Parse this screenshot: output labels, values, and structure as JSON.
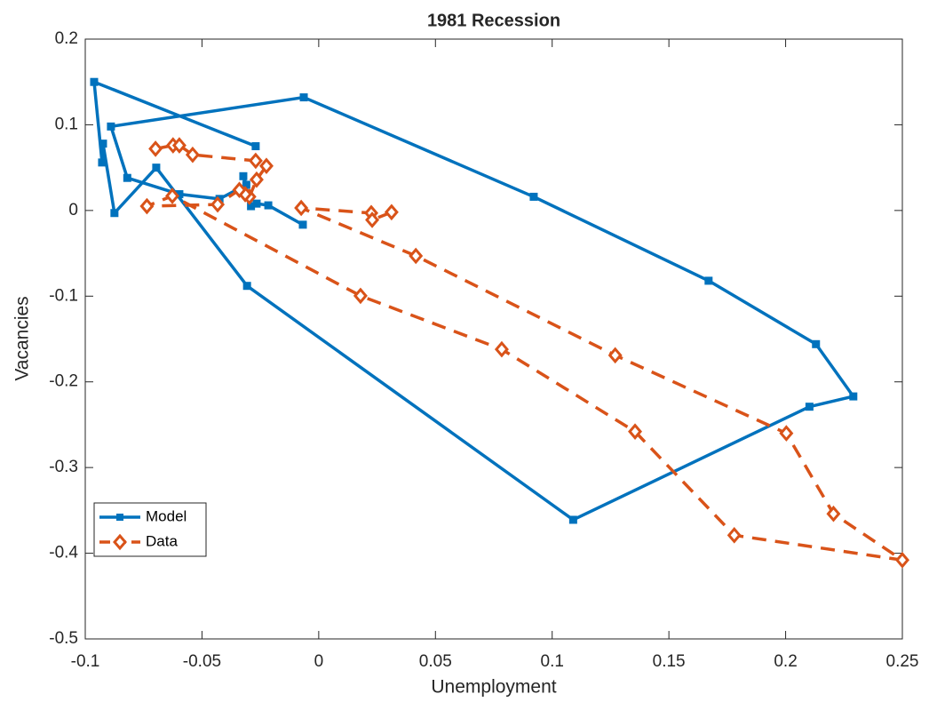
{
  "chart_data": {
    "type": "line",
    "title": "1981 Recession",
    "x_label": "Unemployment",
    "y_label": "Vacancies",
    "xlim": [
      -0.1,
      0.25
    ],
    "ylim": [
      -0.5,
      0.2
    ],
    "xticks": [
      -0.1,
      -0.05,
      0,
      0.05,
      0.1,
      0.15,
      0.2,
      0.25
    ],
    "yticks": [
      -0.5,
      -0.4,
      -0.3,
      -0.2,
      -0.1,
      0,
      0.1,
      0.2
    ],
    "grid": false,
    "legend_position": "lower left",
    "series": [
      {
        "name": "Model",
        "color": "#0072BD",
        "marker": "square",
        "linestyle": "solid",
        "x": [
          -0.027,
          -0.0962,
          -0.0928,
          -0.0924,
          -0.0875,
          -0.0696,
          -0.0307,
          0.109,
          0.2102,
          0.229,
          0.213,
          0.167,
          0.0921,
          -0.0064,
          -0.089,
          -0.082,
          -0.0597,
          -0.0425,
          -0.031,
          -0.0323,
          -0.029,
          -0.0266,
          -0.0216,
          -0.0068
        ],
        "values": [
          0.075,
          0.15,
          0.056,
          0.078,
          -0.003,
          0.05,
          -0.088,
          -0.361,
          -0.229,
          -0.217,
          -0.156,
          -0.082,
          0.016,
          0.132,
          0.098,
          0.038,
          0.019,
          0.0135,
          0.03,
          0.04,
          0.005,
          0.008,
          0.006,
          -0.0166
        ]
      },
      {
        "name": "Data",
        "color": "#D95319",
        "marker": "diamond",
        "linestyle": "dashed",
        "x": [
          -0.0699,
          -0.0624,
          -0.0597,
          -0.054,
          -0.027,
          -0.0224,
          -0.0266,
          -0.0297,
          -0.0315,
          -0.034,
          -0.0433,
          -0.0736,
          -0.0627,
          0.0179,
          0.0784,
          0.1355,
          0.178,
          0.25,
          0.2205,
          0.2003,
          0.127,
          0.0416,
          -0.0075,
          0.0225,
          0.0229,
          0.0312
        ],
        "values": [
          0.072,
          0.076,
          0.076,
          0.065,
          0.058,
          0.052,
          0.036,
          0.016,
          0.019,
          0.024,
          0.007,
          0.005,
          0.017,
          -0.0996,
          -0.162,
          -0.258,
          -0.379,
          -0.408,
          -0.354,
          -0.26,
          -0.169,
          -0.053,
          0.003,
          -0.003,
          -0.011,
          -0.002
        ]
      }
    ]
  }
}
